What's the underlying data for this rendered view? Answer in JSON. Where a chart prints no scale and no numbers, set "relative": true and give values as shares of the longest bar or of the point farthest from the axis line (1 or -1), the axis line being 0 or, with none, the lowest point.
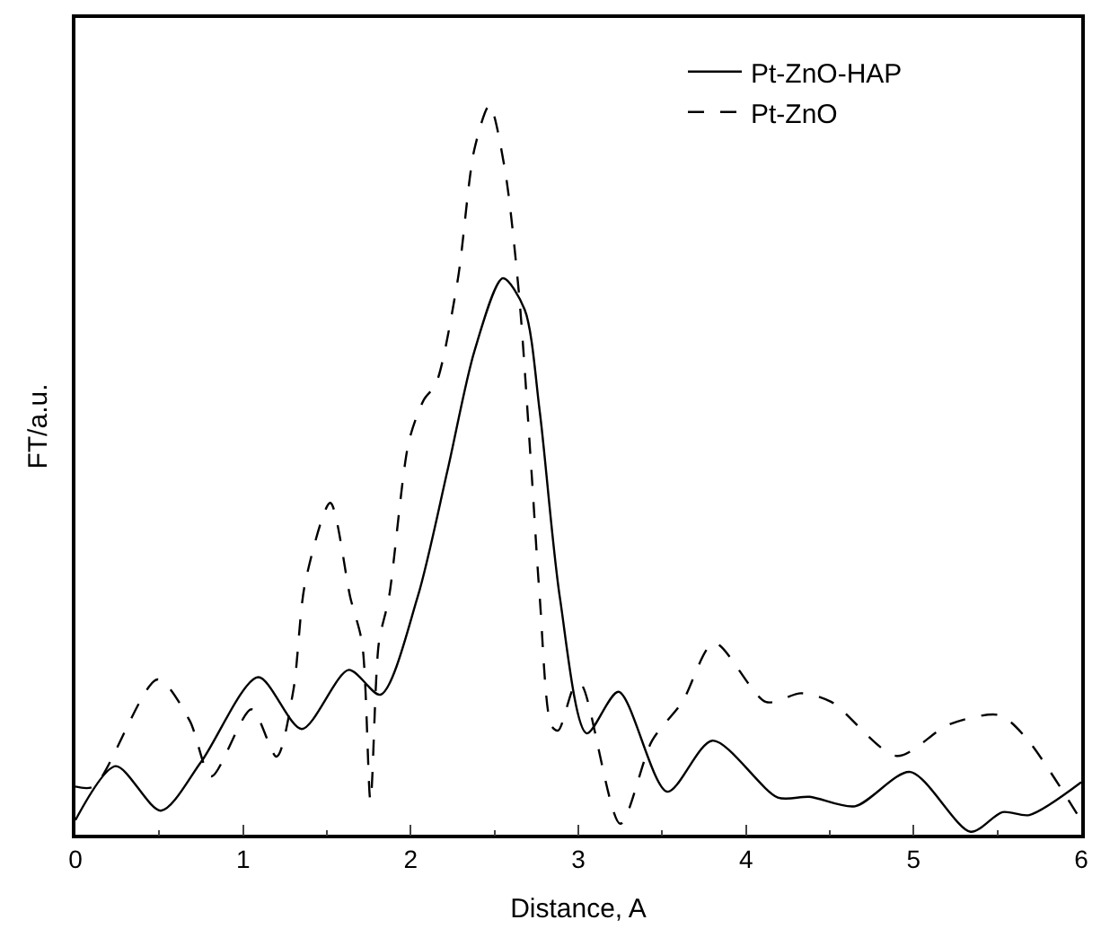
{
  "chart_data": {
    "type": "line",
    "xlabel": "Distance, A",
    "ylabel": "FT/a.u.",
    "relative": true,
    "xlim": [
      0,
      6
    ],
    "xticks": [
      0,
      1,
      2,
      3,
      4,
      5,
      6
    ],
    "legend": "top right",
    "marker": "none",
    "series": [
      {
        "name": "Pt-ZnO-HAP",
        "color": "#000000",
        "line_style": "solid",
        "x": [
          0,
          0.24,
          0.51,
          0.75,
          1.09,
          1.35,
          1.63,
          1.82,
          2.04,
          2.22,
          2.38,
          2.55,
          2.68,
          2.77,
          2.89,
          3.05,
          3.24,
          3.53,
          3.8,
          4.19,
          4.38,
          4.65,
          4.98,
          5.34,
          5.53,
          5.69,
          6.0
        ],
        "values": [
          0.02,
          0.094,
          0.033,
          0.1,
          0.216,
          0.145,
          0.226,
          0.192,
          0.325,
          0.5,
          0.663,
          0.763,
          0.72,
          0.58,
          0.325,
          0.139,
          0.196,
          0.059,
          0.129,
          0.051,
          0.052,
          0.039,
          0.086,
          0.004,
          0.031,
          0.027,
          0.072
        ]
      },
      {
        "name": "Pt-ZnO",
        "color": "#000000",
        "line_style": "dashed",
        "x": [
          0,
          0.11,
          0.49,
          0.68,
          0.81,
          1.05,
          1.2,
          1.3,
          1.37,
          1.52,
          1.64,
          1.71,
          1.76,
          1.81,
          1.87,
          1.99,
          2.08,
          2.15,
          2.28,
          2.38,
          2.47,
          2.56,
          2.645,
          2.72,
          2.77,
          2.84,
          2.88,
          2.98,
          3.02,
          3.25,
          3.44,
          3.62,
          3.81,
          4.12,
          4.33,
          4.51,
          4.9,
          5.21,
          5.51,
          5.67,
          5.99
        ],
        "values": [
          0.066,
          0.066,
          0.213,
          0.157,
          0.08,
          0.172,
          0.107,
          0.198,
          0.345,
          0.455,
          0.325,
          0.263,
          0.047,
          0.263,
          0.325,
          0.54,
          0.597,
          0.618,
          0.76,
          0.94,
          1,
          0.915,
          0.744,
          0.5,
          0.325,
          0.149,
          0.143,
          0.205,
          0.205,
          0.015,
          0.129,
          0.182,
          0.263,
          0.182,
          0.194,
          0.182,
          0.108,
          0.151,
          0.164,
          0.133,
          0.023
        ]
      }
    ]
  }
}
